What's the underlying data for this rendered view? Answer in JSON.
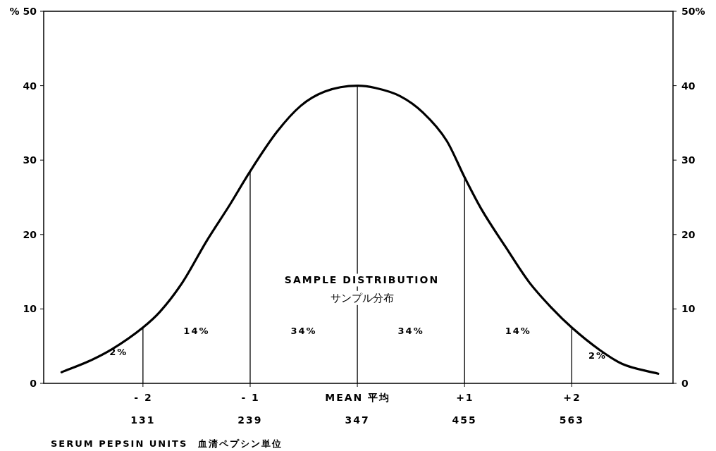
{
  "chart_data": {
    "type": "line",
    "title": "SAMPLE DISTRIBUTION",
    "subtitle": "サンプル分布",
    "xlabel": "SERUM PEPSIN UNITS　血清ペプシン単位",
    "x": [
      49,
      77,
      100,
      131,
      148,
      171,
      195,
      219,
      239,
      266,
      290,
      314,
      347,
      365,
      390,
      413,
      437,
      455,
      472,
      496,
      520,
      543,
      563,
      591,
      614,
      650
    ],
    "series": [
      {
        "color": "#000000",
        "line_style": "solid",
        "values": [
          1.5,
          3.0,
          4.6,
          7.5,
          9.6,
          13.6,
          19.1,
          24.1,
          28.5,
          33.8,
          37.3,
          39.2,
          40.0,
          39.7,
          38.6,
          36.4,
          32.6,
          27.7,
          23.4,
          18.4,
          13.6,
          10.1,
          7.5,
          4.5,
          2.6,
          1.3
        ]
      }
    ],
    "xlim": [
      31,
      665
    ],
    "ylim": [
      0,
      50
    ],
    "y2lim": [
      0,
      50
    ],
    "xticks": [
      131,
      239,
      347,
      455,
      563
    ],
    "x2lim": [
      -2.93,
      2.94
    ],
    "x2ticks": [
      {
        "value": -2,
        "label": "- 2"
      },
      {
        "value": -1,
        "label": "- 1"
      },
      {
        "value": 0,
        "label": "MEAN  平均"
      },
      {
        "value": 1,
        "label": "+1"
      },
      {
        "value": 2,
        "label": "+2"
      }
    ],
    "yticks": [
      0,
      10,
      20,
      30,
      40,
      {
        "value": 50,
        "label": "% 50"
      }
    ],
    "y2ticks": [
      0,
      10,
      20,
      30,
      40,
      {
        "value": 50,
        "label": "50%"
      }
    ],
    "ref_lines": [
      {
        "axis": "x",
        "value": 131,
        "color": "#000000"
      },
      {
        "axis": "x",
        "value": 239,
        "color": "#000000"
      },
      {
        "axis": "x",
        "value": 347,
        "color": "#000000"
      },
      {
        "axis": "x",
        "value": 455,
        "color": "#000000"
      },
      {
        "axis": "x",
        "value": 563,
        "color": "#000000"
      }
    ],
    "annotations": [
      "2%",
      "14%",
      "34%",
      "34%",
      "14%",
      "2%"
    ]
  }
}
